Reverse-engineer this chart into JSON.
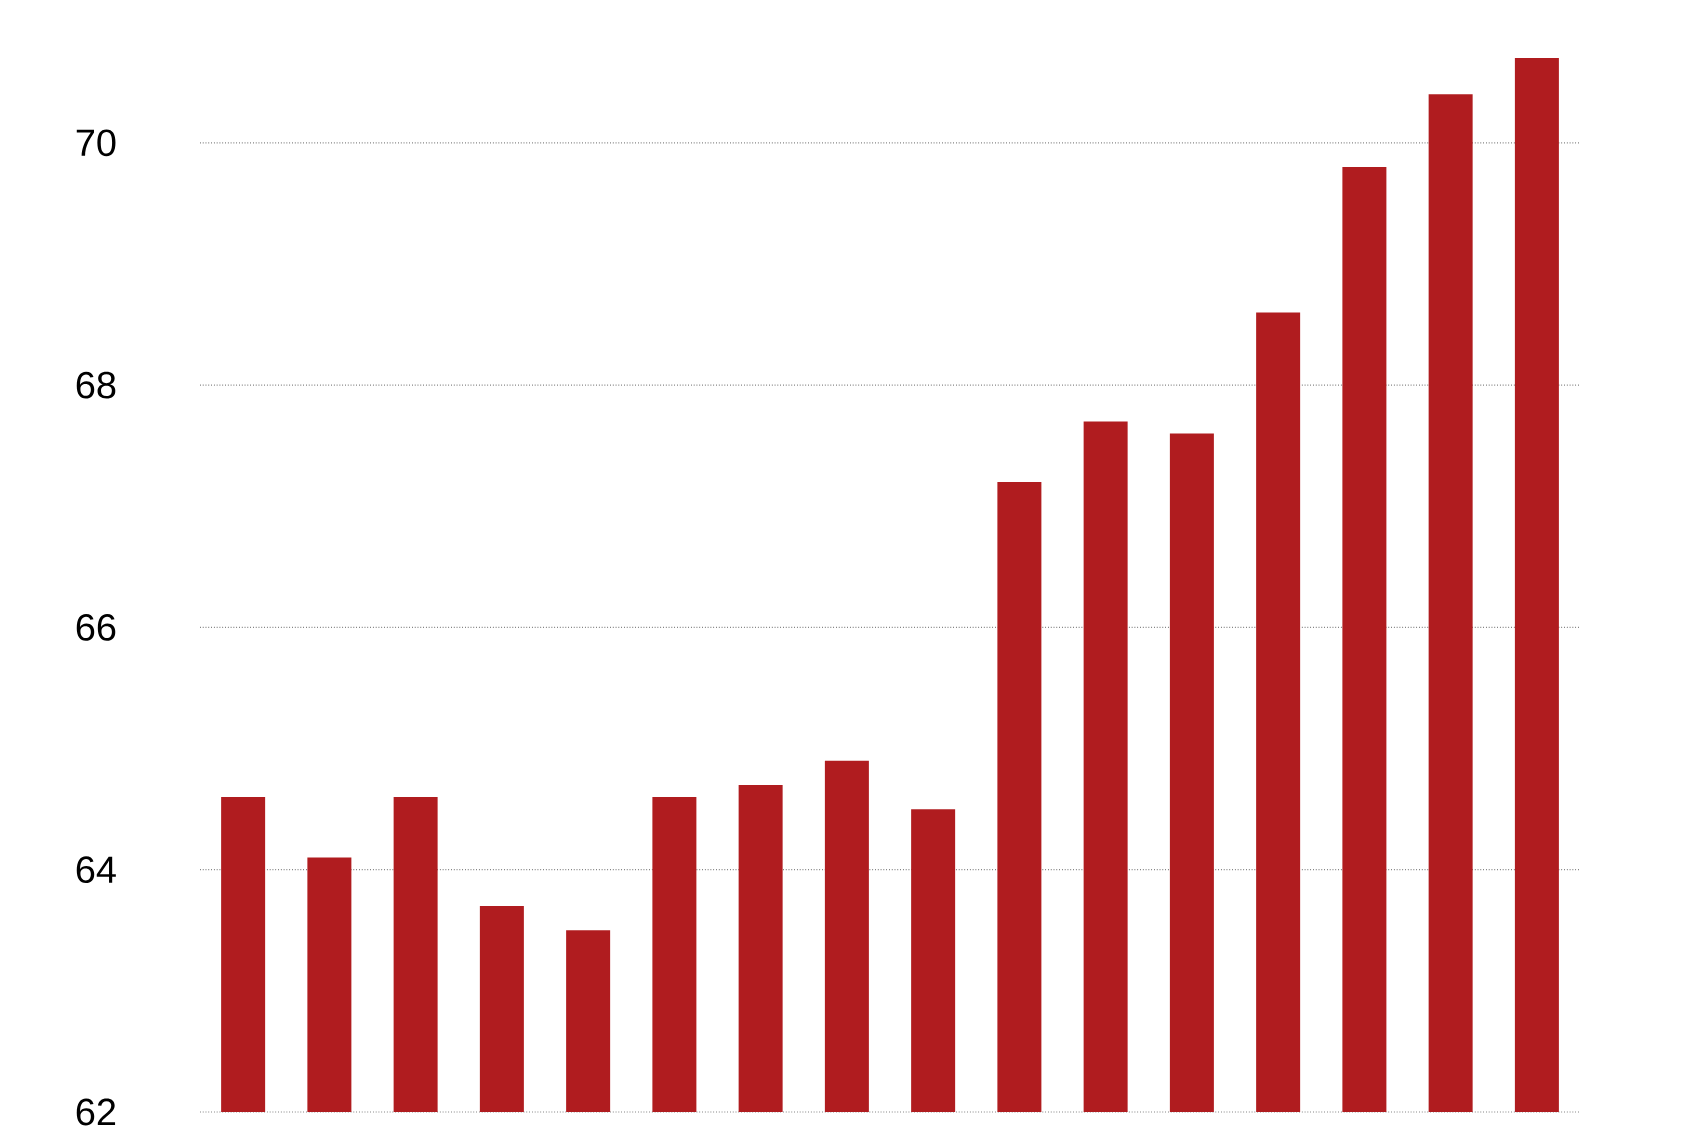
{
  "chart_data": {
    "type": "bar",
    "categories": [
      null,
      null,
      null,
      null,
      null,
      null,
      null,
      null,
      null,
      null,
      null,
      null,
      null,
      null,
      null,
      null
    ],
    "values": [
      64.6,
      64.1,
      64.6,
      63.7,
      63.5,
      64.6,
      64.7,
      64.9,
      64.5,
      67.2,
      67.7,
      67.6,
      68.6,
      69.8,
      70.4,
      70.7
    ],
    "color": "#b01c1f",
    "ylim": [
      62,
      70.7
    ],
    "yticks": [
      62,
      64,
      66,
      68,
      70
    ],
    "grid": "y",
    "tick_labels": "y"
  }
}
